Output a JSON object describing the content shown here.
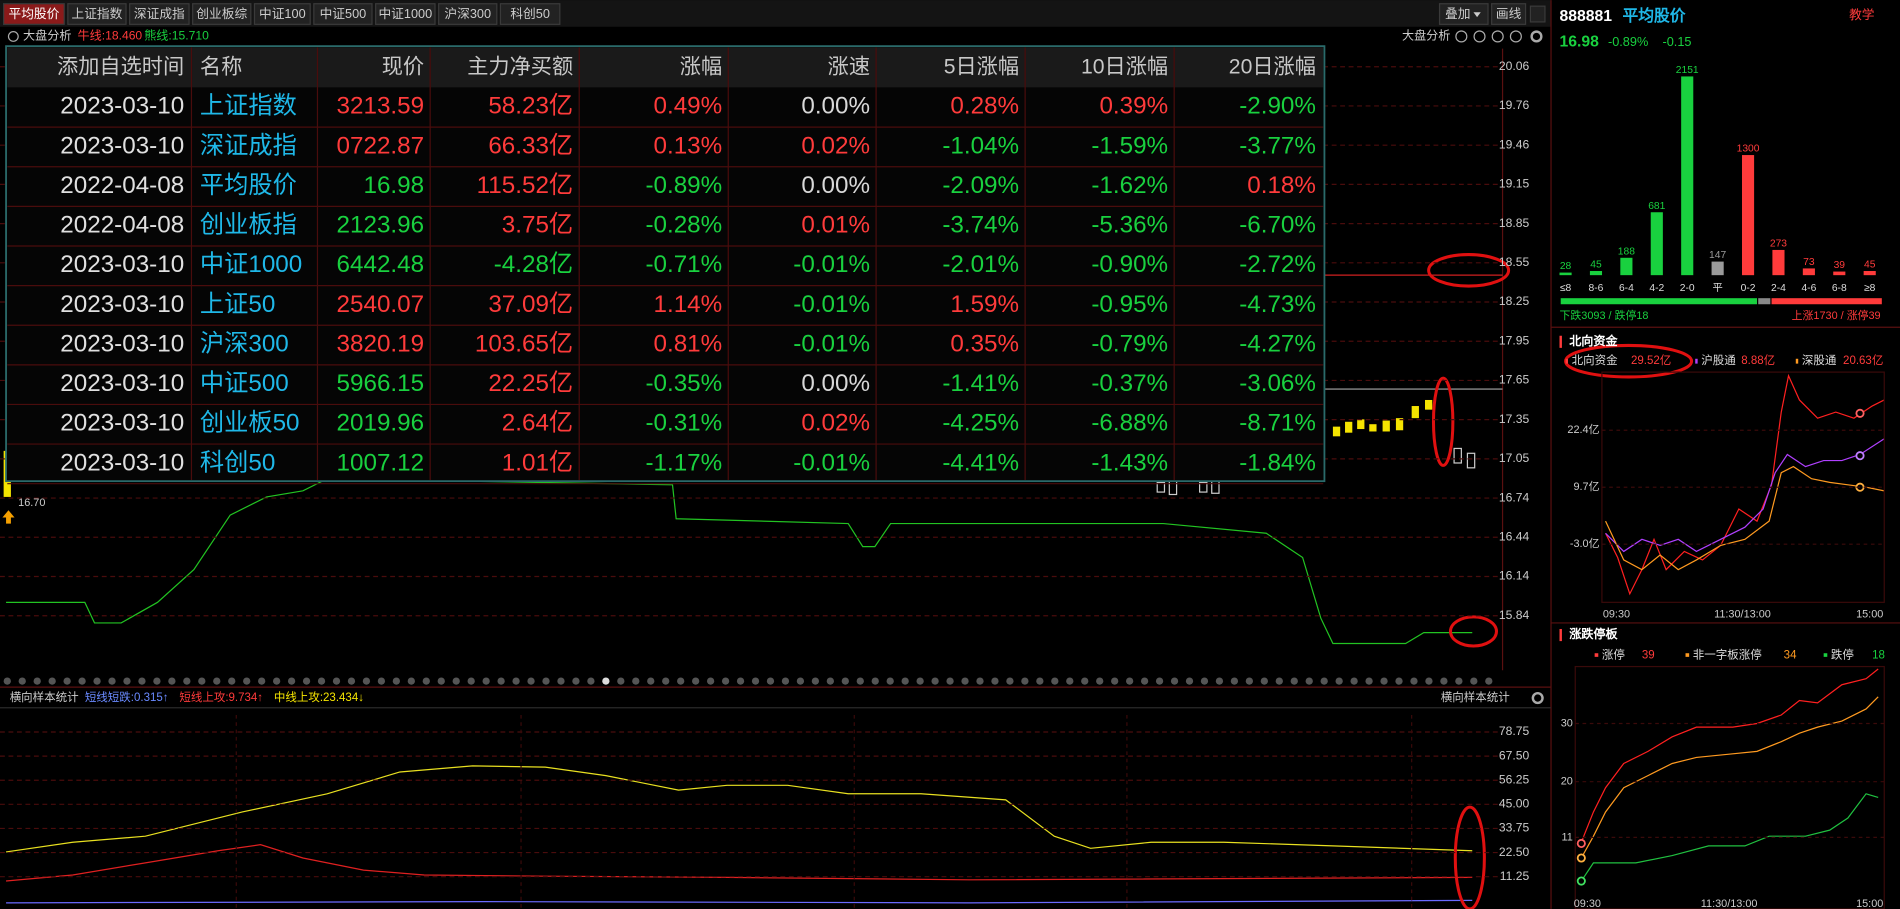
{
  "tabs": [
    "平均股价",
    "上证指数",
    "深证成指",
    "创业板综",
    "中证100",
    "中证500",
    "中证1000",
    "沪深300",
    "科创50"
  ],
  "toolbar": {
    "overlay": "叠加",
    "draw": "画线"
  },
  "analysis": {
    "label": "大盘分析",
    "bull": "牛线:18.460",
    "bear": "熊线:15.710",
    "right": "大盘分析"
  },
  "table": {
    "headers": [
      "添加自选时间",
      "名称",
      "现价",
      "主力净买额",
      "涨幅",
      "涨速",
      "5日涨幅",
      "10日涨幅",
      "20日涨幅"
    ],
    "rows": [
      [
        "2023-03-10",
        "上证指数",
        "3213.59",
        "58.23亿",
        "0.49%",
        "0.00%",
        "0.28%",
        "0.39%",
        "-2.90%"
      ],
      [
        "2023-03-10",
        "深证成指",
        "0722.87",
        "66.33亿",
        "0.13%",
        "0.02%",
        "-1.04%",
        "-1.59%",
        "-3.77%"
      ],
      [
        "2022-04-08",
        "平均股价",
        "16.98",
        "115.52亿",
        "-0.89%",
        "0.00%",
        "-2.09%",
        "-1.62%",
        "0.18%"
      ],
      [
        "2022-04-08",
        "创业板指",
        "2123.96",
        "3.75亿",
        "-0.28%",
        "0.01%",
        "-3.74%",
        "-5.36%",
        "-6.70%"
      ],
      [
        "2023-03-10",
        "中证1000",
        "6442.48",
        "-4.28亿",
        "-0.71%",
        "-0.01%",
        "-2.01%",
        "-0.90%",
        "-2.72%"
      ],
      [
        "2023-03-10",
        "上证50",
        "2540.07",
        "37.09亿",
        "1.14%",
        "-0.01%",
        "1.59%",
        "-0.95%",
        "-4.73%"
      ],
      [
        "2023-03-10",
        "沪深300",
        "3820.19",
        "103.65亿",
        "0.81%",
        "-0.01%",
        "0.35%",
        "-0.79%",
        "-4.27%"
      ],
      [
        "2023-03-10",
        "中证500",
        "5966.15",
        "22.25亿",
        "-0.35%",
        "0.00%",
        "-1.41%",
        "-0.37%",
        "-3.06%"
      ],
      [
        "2023-03-10",
        "创业板50",
        "2019.96",
        "2.64亿",
        "-0.31%",
        "0.02%",
        "-4.25%",
        "-6.88%",
        "-8.71%"
      ],
      [
        "2023-03-10",
        "科创50",
        "1007.12",
        "1.01亿",
        "-1.17%",
        "-0.01%",
        "-4.41%",
        "-1.43%",
        "-1.84%"
      ]
    ]
  },
  "main_axis": {
    "labels": [
      "20.06",
      "19.76",
      "19.46",
      "19.15",
      "18.85",
      "18.55",
      "18.25",
      "17.95",
      "17.65",
      "17.35",
      "17.05",
      "16.74",
      "16.44",
      "16.14",
      "15.84"
    ],
    "low": "16.70"
  },
  "lower": {
    "title": "横向样本统计",
    "indicators": [
      "短线短跌:0.315↑",
      "短线上攻:9.734↑",
      "中线上攻:23.434↓"
    ],
    "right": "横向样本统计",
    "labels": [
      "78.75",
      "67.50",
      "56.25",
      "45.00",
      "33.75",
      "22.50",
      "11.25"
    ]
  },
  "quote": {
    "code": "888881",
    "name": "平均股价",
    "teach": "教学",
    "price": "16.98",
    "pct": "-0.89%",
    "change": "-0.15"
  },
  "distribution": {
    "categories": [
      "≤8",
      "8-6",
      "6-4",
      "4-2",
      "2-0",
      "平",
      "0-2",
      "2-4",
      "4-6",
      "6-8",
      "≥8"
    ],
    "values": [
      28,
      45,
      188,
      681,
      2151,
      147,
      1300,
      273,
      73,
      39,
      45
    ],
    "colors": [
      "#19d13f",
      "#19d13f",
      "#19d13f",
      "#19d13f",
      "#19d13f",
      "#9a9a9a",
      "#ff3b3b",
      "#ff3b3b",
      "#ff3b3b",
      "#ff3b3b",
      "#ff3b3b"
    ],
    "down": "下跌3093 / 跌停18",
    "up": "上涨1730 / 涨停39"
  },
  "north": {
    "title": "北向资金",
    "total_label": "北向资金",
    "total": "29.52亿",
    "sh_label": "沪股通",
    "sh": "8.88亿",
    "sz_label": "深股通",
    "sz": "20.63亿",
    "axis": [
      "22.4亿",
      "9.7亿",
      "-3.0亿"
    ],
    "times": [
      "09:30",
      "11:30/13:00",
      "15:00"
    ]
  },
  "limit": {
    "title": "涨跌停板",
    "items": [
      {
        "label": "涨停",
        "value": "39"
      },
      {
        "label": "非一字板涨停",
        "value": "34"
      },
      {
        "label": "跌停",
        "value": "18"
      }
    ],
    "axis": [
      "30",
      "20",
      "11"
    ],
    "times": [
      "09:30",
      "11:30/13:00",
      "15:00"
    ]
  }
}
